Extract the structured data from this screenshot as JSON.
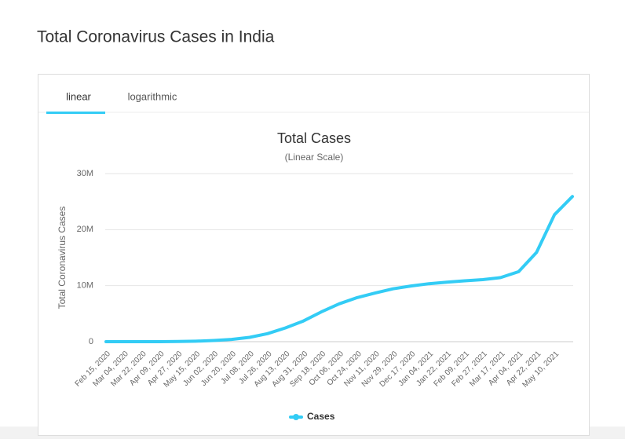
{
  "header": {
    "title": "Total Coronavirus Cases in India"
  },
  "tabs": [
    "linear",
    "logarithmic"
  ],
  "chart_data": {
    "type": "line",
    "title": "Total Cases",
    "subtitle": "(Linear Scale)",
    "y_label": "Total Coronavirus Cases",
    "categories": [
      "Feb 15, 2020",
      "Mar 04, 2020",
      "Mar 22, 2020",
      "Apr 09, 2020",
      "Apr 27, 2020",
      "May 15, 2020",
      "Jun 02, 2020",
      "Jun 20, 2020",
      "Jul 08, 2020",
      "Jul 26, 2020",
      "Aug 13, 2020",
      "Aug 31, 2020",
      "Sep 18, 2020",
      "Oct 06, 2020",
      "Oct 24, 2020",
      "Nov 11, 2020",
      "Nov 29, 2020",
      "Dec 17, 2020",
      "Jan 04, 2021",
      "Jan 22, 2021",
      "Feb 09, 2021",
      "Feb 27, 2021",
      "Mar 17, 2021",
      "Apr 04, 2021",
      "Apr 22, 2021",
      "May 10, 2021",
      null
    ],
    "series": [
      {
        "name": "Cases",
        "color": "#33ccf5",
        "values": [
          3,
          28,
          396,
          6725,
          29451,
          85784,
          207191,
          410451,
          767296,
          1435453,
          2459613,
          3687939,
          5308014,
          6757131,
          7864811,
          8683916,
          9431691,
          9932547,
          10340469,
          10625428,
          10858371,
          11079979,
          11438734,
          12485509,
          15930965,
          22662575,
          25900000
        ]
      }
    ],
    "ylim": [
      0,
      30000000
    ],
    "yticks": [
      0,
      {
        "value": 10000000,
        "label": "10M"
      },
      {
        "value": 20000000,
        "label": "20M"
      },
      {
        "value": 30000000,
        "label": "30M"
      }
    ],
    "grid": true,
    "legend": "bottom"
  }
}
